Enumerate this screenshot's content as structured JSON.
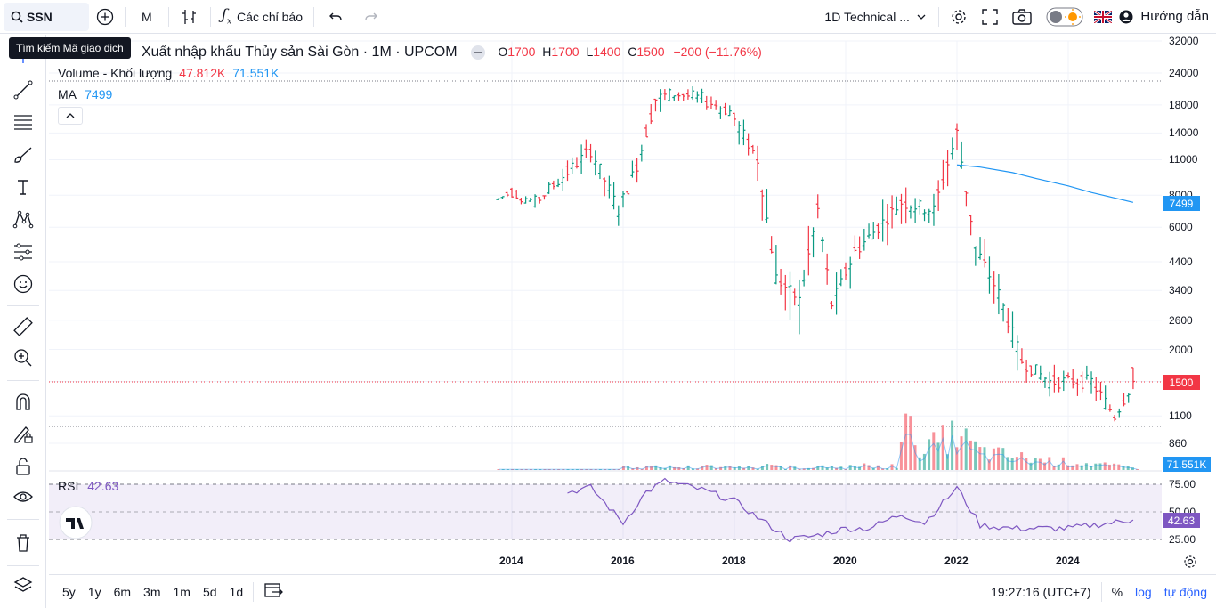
{
  "toolbar": {
    "symbol": "SSN",
    "interval": "M",
    "indicators_label": "Các chỉ báo",
    "layout_name": "1D Technical ...",
    "help_label": "Hướng dẫn"
  },
  "tooltip": "Tìm kiếm Mã giao dịch",
  "legend": {
    "title": "Xuất nhập khẩu Thủy sản Sài Gòn · 1M · UPCOM",
    "ohlc": {
      "o_label": "O",
      "o": "1700",
      "h_label": "H",
      "h": "1700",
      "l_label": "L",
      "l": "1400",
      "c_label": "C",
      "c": "1500",
      "change": "−200 (−11.76%)"
    },
    "volume_label": "Volume - Khối lượng",
    "volume_value": "47.812K",
    "volume_ma": "71.551K",
    "ma_label": "MA",
    "ma_value": "7499",
    "rsi_label": "RSI",
    "rsi_value": "42.63"
  },
  "price_axis": {
    "ticks": [
      "32000",
      "24000",
      "18000",
      "14000",
      "11000",
      "8000",
      "6000",
      "4400",
      "3400",
      "2600",
      "2000",
      "1500",
      "1100",
      "860"
    ],
    "ma_tag": "7499",
    "price_tag": "1500",
    "volume_tag": "71.551K",
    "rsi_ticks": [
      "75.00",
      "50.00",
      "25.00"
    ],
    "rsi_tag": "42.63"
  },
  "time_axis": [
    "2014",
    "2016",
    "2018",
    "2020",
    "2022",
    "2024"
  ],
  "bottom": {
    "ranges": [
      "5y",
      "1y",
      "6m",
      "3m",
      "1m",
      "5d",
      "1d"
    ],
    "clock": "19:27:16 (UTC+7)",
    "percent": "%",
    "log": "log",
    "auto": "tự động"
  },
  "colors": {
    "up": "#089981",
    "down": "#f23645",
    "ma": "#2196f3",
    "rsi": "#7e57c2",
    "accent": "#2962ff"
  },
  "chart_data": {
    "type": "ohlc",
    "scale": "log",
    "series": [
      {
        "name": "Xuất nhập khẩu Thủy sản Sài Gòn",
        "points": [
          [
            "2013-10",
            7600,
            7900,
            7500,
            7700
          ],
          [
            "2014-01",
            7700,
            8400,
            7700,
            8300
          ],
          [
            "2014-06",
            8300,
            8300,
            7400,
            7500
          ],
          [
            "2014-11",
            7500,
            9100,
            7500,
            9100
          ],
          [
            "2015-06",
            9100,
            14000,
            8000,
            12000
          ],
          [
            "2015-12",
            12000,
            12500,
            6500,
            7000
          ],
          [
            "2016-04",
            7000,
            11000,
            6500,
            10500
          ],
          [
            "2016-08",
            10500,
            20000,
            10500,
            19000
          ],
          [
            "2016-12",
            19000,
            22000,
            17000,
            20000
          ],
          [
            "2017-06",
            20000,
            21500,
            17500,
            19000
          ],
          [
            "2017-12",
            19000,
            21000,
            16000,
            17000
          ],
          [
            "2018-06",
            17000,
            16500,
            9000,
            11000
          ],
          [
            "2018-10",
            11000,
            13000,
            3300,
            3800
          ],
          [
            "2019-03",
            3800,
            5500,
            2300,
            3100
          ],
          [
            "2019-07",
            3100,
            10000,
            3000,
            7000
          ],
          [
            "2019-10",
            7000,
            7000,
            2600,
            3000
          ],
          [
            "2020-03",
            3000,
            5000,
            2500,
            4800
          ],
          [
            "2020-08",
            4800,
            7500,
            4000,
            6000
          ],
          [
            "2021-01",
            6000,
            10000,
            3500,
            7500
          ],
          [
            "2021-08",
            7500,
            8000,
            5000,
            7000
          ],
          [
            "2022-01",
            7000,
            17000,
            10000,
            14000
          ],
          [
            "2022-05",
            14000,
            9000,
            4500,
            5000
          ],
          [
            "2022-10",
            5000,
            5500,
            3000,
            3300
          ],
          [
            "2023-03",
            3300,
            2500,
            1500,
            1800
          ],
          [
            "2023-09",
            1800,
            2200,
            1300,
            1500
          ],
          [
            "2024-06",
            1500,
            1800,
            1200,
            1500
          ],
          [
            "2024-11",
            1500,
            1600,
            950,
            1100
          ],
          [
            "2025-03",
            1700,
            1700,
            1400,
            1500
          ]
        ]
      },
      {
        "name": "MA",
        "points": [
          [
            "2022-01",
            10500
          ],
          [
            "2022-06",
            10300
          ],
          [
            "2023-01",
            9800
          ],
          [
            "2023-06",
            9300
          ],
          [
            "2024-01",
            8700
          ],
          [
            "2024-06",
            8200
          ],
          [
            "2025-03",
            7499
          ]
        ]
      },
      {
        "name": "RSI",
        "points": [
          [
            "2015-01",
            68
          ],
          [
            "2015-06",
            72
          ],
          [
            "2016-01",
            40
          ],
          [
            "2016-06",
            68
          ],
          [
            "2016-10",
            78
          ],
          [
            "2017-06",
            70
          ],
          [
            "2018-01",
            60
          ],
          [
            "2018-06",
            45
          ],
          [
            "2019-01",
            25
          ],
          [
            "2019-06",
            28
          ],
          [
            "2020-01",
            35
          ],
          [
            "2020-06",
            35
          ],
          [
            "2021-01",
            48
          ],
          [
            "2021-06",
            40
          ],
          [
            "2022-01",
            72
          ],
          [
            "2022-06",
            38
          ],
          [
            "2023-01",
            35
          ],
          [
            "2024-01",
            35
          ],
          [
            "2025-03",
            42.63
          ]
        ]
      }
    ],
    "volume": [
      [
        "2020-12",
        1800
      ],
      [
        "2021-01",
        900
      ],
      [
        "2021-06",
        400
      ],
      [
        "2022-01",
        700
      ],
      [
        "2022-06",
        350
      ],
      [
        "2023-06",
        200
      ],
      [
        "2024-06",
        120
      ],
      [
        "2025-03",
        47.8
      ]
    ],
    "ylim": [
      860,
      32000
    ],
    "rsi_levels": [
      70,
      50,
      30
    ]
  }
}
